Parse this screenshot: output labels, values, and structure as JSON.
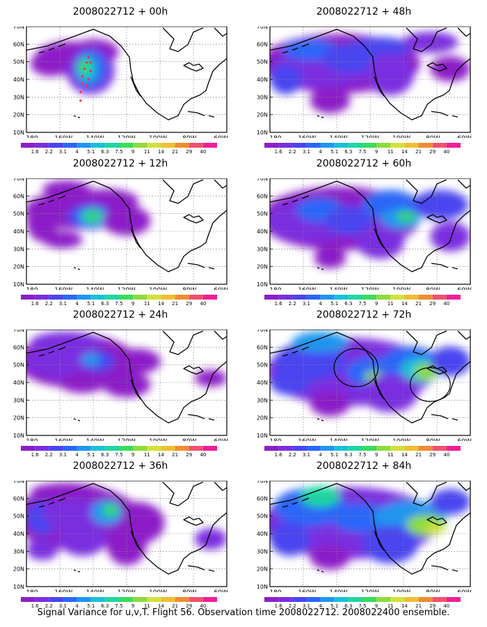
{
  "caption": "Signal Variance for u,v,T. Flight 56. Observation time 2008022712. 2008022400 ensemble.",
  "colorbar": {
    "labels": [
      "1.6",
      "2.2",
      "3.1",
      "4",
      "5.1",
      "6.3",
      "7.5",
      "9",
      "11",
      "14",
      "21",
      "29",
      "40"
    ],
    "colors": [
      "#8c1ec8",
      "#7a2ee0",
      "#4a44f0",
      "#2a66f8",
      "#1e96f0",
      "#19c0d8",
      "#1ed6a0",
      "#38dc5a",
      "#8cdc3a",
      "#d2e13a",
      "#f0be32",
      "#f08c32",
      "#f0506e",
      "#f01e96"
    ]
  },
  "axes": {
    "lat_labels": [
      "70N",
      "60N",
      "50N",
      "40N",
      "30N",
      "20N",
      "10N"
    ],
    "lon_labels": [
      "180",
      "160W",
      "140W",
      "120W",
      "100W",
      "80W",
      "60W"
    ]
  },
  "panels": [
    {
      "id": "p00",
      "title": "2008022712 + 00h"
    },
    {
      "id": "p12",
      "title": "2008022712 + 12h"
    },
    {
      "id": "p24",
      "title": "2008022712 + 24h"
    },
    {
      "id": "p36",
      "title": "2008022712 + 36h"
    },
    {
      "id": "p48",
      "title": "2008022712 + 48h"
    },
    {
      "id": "p60",
      "title": "2008022712 + 60h"
    },
    {
      "id": "p72",
      "title": "2008022712 + 72h"
    },
    {
      "id": "p84",
      "title": "2008022712 + 84h"
    }
  ]
}
